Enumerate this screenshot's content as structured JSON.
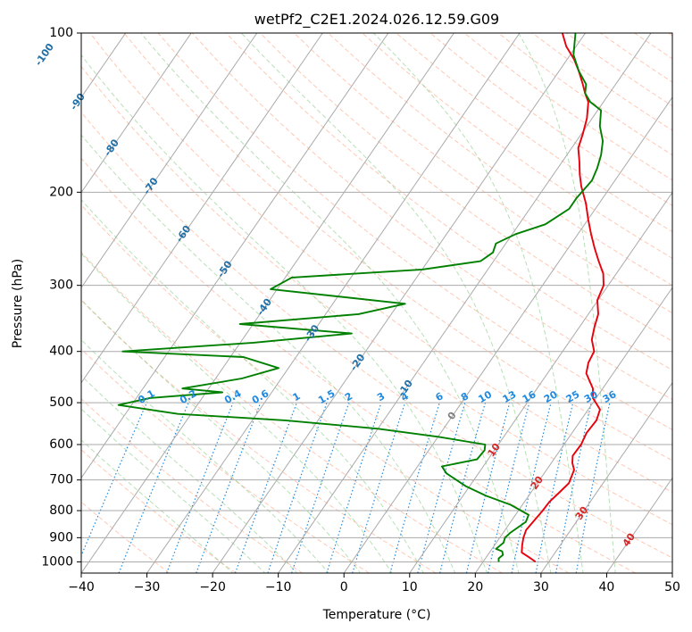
{
  "chart_data": {
    "type": "line",
    "title": "wetPf2_C2E1.2024.026.12.59.G09",
    "xlabel": "Temperature (°C)",
    "ylabel": "Pressure (hPa)",
    "xlim": [
      -40,
      50
    ],
    "ylim": [
      1050,
      100
    ],
    "y_scale": "log",
    "grid": true,
    "x_ticks": [
      -40,
      -30,
      -20,
      -10,
      0,
      10,
      20,
      30,
      40,
      50
    ],
    "y_ticks": [
      100,
      200,
      300,
      400,
      500,
      600,
      700,
      800,
      900,
      1000
    ],
    "skew_slope": 0.69,
    "colors": {
      "temperature": "#e8000b",
      "dewpoint": "#008000",
      "isotherm": "#aaaaaa",
      "isobar": "#aaaaaa",
      "dry_adiabat": "#ff9b77",
      "moist_adiabat": "#7bc67b",
      "mixing_ratio": "#1f8ae0",
      "isotherm_label": "#1f6fa8",
      "moist_label": "#d62728",
      "zero_label": "#808080",
      "lcl_curve": "#d2b48c"
    },
    "series": [
      {
        "key": "temperature",
        "points": [
          [
            28.0,
            1000
          ],
          [
            26.5,
            980
          ],
          [
            24.9,
            960
          ],
          [
            24.2,
            930
          ],
          [
            23.6,
            900
          ],
          [
            23.2,
            870
          ],
          [
            23.4,
            840
          ],
          [
            23.7,
            800
          ],
          [
            23.8,
            770
          ],
          [
            24.3,
            740
          ],
          [
            24.8,
            710
          ],
          [
            24.5,
            690
          ],
          [
            24.2,
            670
          ],
          [
            23.2,
            650
          ],
          [
            22.5,
            630
          ],
          [
            22.6,
            600
          ],
          [
            22.2,
            570
          ],
          [
            22.4,
            540
          ],
          [
            21.8,
            515
          ],
          [
            19.5,
            490
          ],
          [
            18.5,
            470
          ],
          [
            15.9,
            440
          ],
          [
            15.1,
            420
          ],
          [
            14.8,
            400
          ],
          [
            13.2,
            380
          ],
          [
            12.3,
            360
          ],
          [
            11.5,
            340
          ],
          [
            9.9,
            320
          ],
          [
            9.3,
            300
          ],
          [
            8.0,
            285
          ],
          [
            6.0,
            270
          ],
          [
            4.0,
            255
          ],
          [
            2.0,
            240
          ],
          [
            0.0,
            225
          ],
          [
            -2.0,
            210
          ],
          [
            -4.5,
            195
          ],
          [
            -6.0,
            185
          ],
          [
            -7.4,
            175
          ],
          [
            -9.0,
            165
          ],
          [
            -9.8,
            155
          ],
          [
            -10.8,
            145
          ],
          [
            -12.3,
            135
          ],
          [
            -13.7,
            130
          ],
          [
            -15.0,
            125
          ],
          [
            -17.0,
            118
          ],
          [
            -19.0,
            112
          ],
          [
            -21.5,
            106
          ],
          [
            -23.5,
            100
          ]
        ]
      },
      {
        "key": "dewpoint",
        "points": [
          [
            22.4,
            1000
          ],
          [
            22.0,
            985
          ],
          [
            22.3,
            970
          ],
          [
            21.8,
            955
          ],
          [
            20.6,
            945
          ],
          [
            20.8,
            935
          ],
          [
            21.1,
            920
          ],
          [
            20.8,
            900
          ],
          [
            21.1,
            880
          ],
          [
            22.3,
            840
          ],
          [
            22.0,
            815
          ],
          [
            18.2,
            780
          ],
          [
            13.5,
            750
          ],
          [
            9.5,
            720
          ],
          [
            5.1,
            680
          ],
          [
            3.7,
            660
          ],
          [
            6.0,
            650
          ],
          [
            8.3,
            640
          ],
          [
            8.5,
            615
          ],
          [
            8.0,
            600
          ],
          [
            0.0,
            580
          ],
          [
            -10.0,
            560
          ],
          [
            -25.0,
            540
          ],
          [
            -42.0,
            525
          ],
          [
            -52.0,
            505
          ],
          [
            -48.0,
            490
          ],
          [
            -37.5,
            478
          ],
          [
            -44.0,
            470
          ],
          [
            -36.0,
            450
          ],
          [
            -31.5,
            430
          ],
          [
            -38.0,
            410
          ],
          [
            -57.0,
            400
          ],
          [
            -38.0,
            385
          ],
          [
            -24.0,
            370
          ],
          [
            -42.0,
            355
          ],
          [
            -25.0,
            340
          ],
          [
            -19.0,
            325
          ],
          [
            -41.0,
            305
          ],
          [
            -39.0,
            290
          ],
          [
            -20.0,
            280
          ],
          [
            -12.0,
            270
          ],
          [
            -11.0,
            260
          ],
          [
            -11.5,
            250
          ],
          [
            -9.5,
            240
          ],
          [
            -6.0,
            230
          ],
          [
            -4.0,
            215
          ],
          [
            -4.0,
            205
          ],
          [
            -3.5,
            190
          ],
          [
            -4.0,
            180
          ],
          [
            -4.8,
            170
          ],
          [
            -6.0,
            160
          ],
          [
            -8.0,
            150
          ],
          [
            -9.5,
            140
          ],
          [
            -12.0,
            135
          ],
          [
            -13.7,
            130
          ],
          [
            -14.5,
            125
          ],
          [
            -17.0,
            118
          ],
          [
            -19.5,
            110
          ],
          [
            -21.5,
            100
          ]
        ]
      }
    ],
    "isotherm_labels": [
      "-100",
      "-90",
      "-80",
      "-70",
      "-60",
      "-50",
      "-40",
      "-30",
      "-20",
      "-10",
      "0",
      "10",
      "20",
      "30",
      "40"
    ],
    "isotherm_label_values": [
      -100,
      -90,
      -80,
      -70,
      -60,
      -50,
      -40,
      -30,
      -20,
      -10,
      0,
      10,
      20,
      30,
      40
    ],
    "isotherm_label_pressures": [
      110,
      135,
      165,
      195,
      240,
      280,
      330,
      370,
      420,
      470,
      530,
      615,
      710,
      810,
      910
    ],
    "mixing_ratio_labels": [
      "0.1",
      "0.2",
      "0.4",
      "0.6",
      "1",
      "1.5",
      "2",
      "3",
      "4",
      "6",
      "8",
      "10",
      "13",
      "16",
      "20",
      "25",
      "30",
      "36"
    ],
    "mixing_ratio_values": [
      0.1,
      0.2,
      0.4,
      0.6,
      1,
      1.5,
      2,
      3,
      4,
      6,
      8,
      10,
      13,
      16,
      20,
      25,
      30,
      36
    ]
  }
}
